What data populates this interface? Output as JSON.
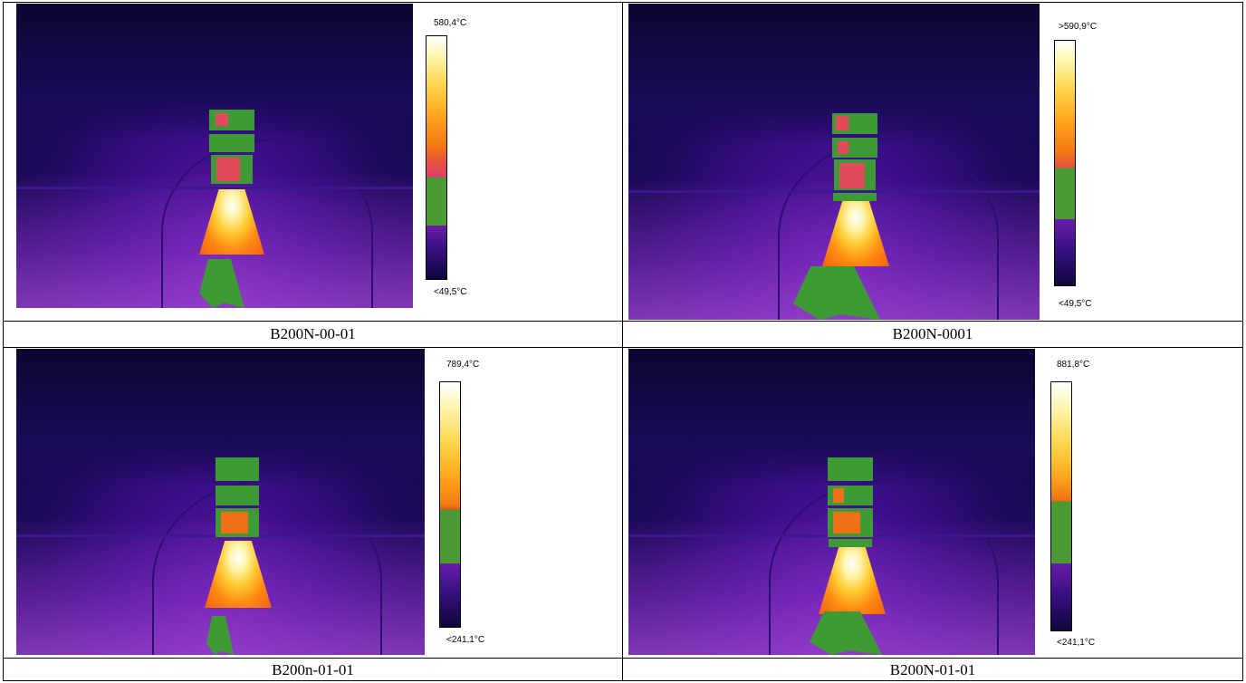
{
  "panels": [
    {
      "caption": "B200N-00-01",
      "scale_max": "580,4°C",
      "scale_min": "<49,5°C"
    },
    {
      "caption": "B200N-0001",
      "scale_max": ">590,9°C",
      "scale_min": "<49,5°C"
    },
    {
      "caption": "B200n-01-01",
      "scale_max": "789,4°C",
      "scale_min": "<241,1°C"
    },
    {
      "caption": "B200N-01-01",
      "scale_max": "881,8°C",
      "scale_min": "<241,1°C"
    }
  ],
  "palette": {
    "hot_white": "#ffffff",
    "hot_yellow": "#ffd54a",
    "hot_orange": "#f37a13",
    "isotherm_green": "#3e9a34",
    "cold_purple": "#6a1caa",
    "cold_dark": "#11063b"
  }
}
